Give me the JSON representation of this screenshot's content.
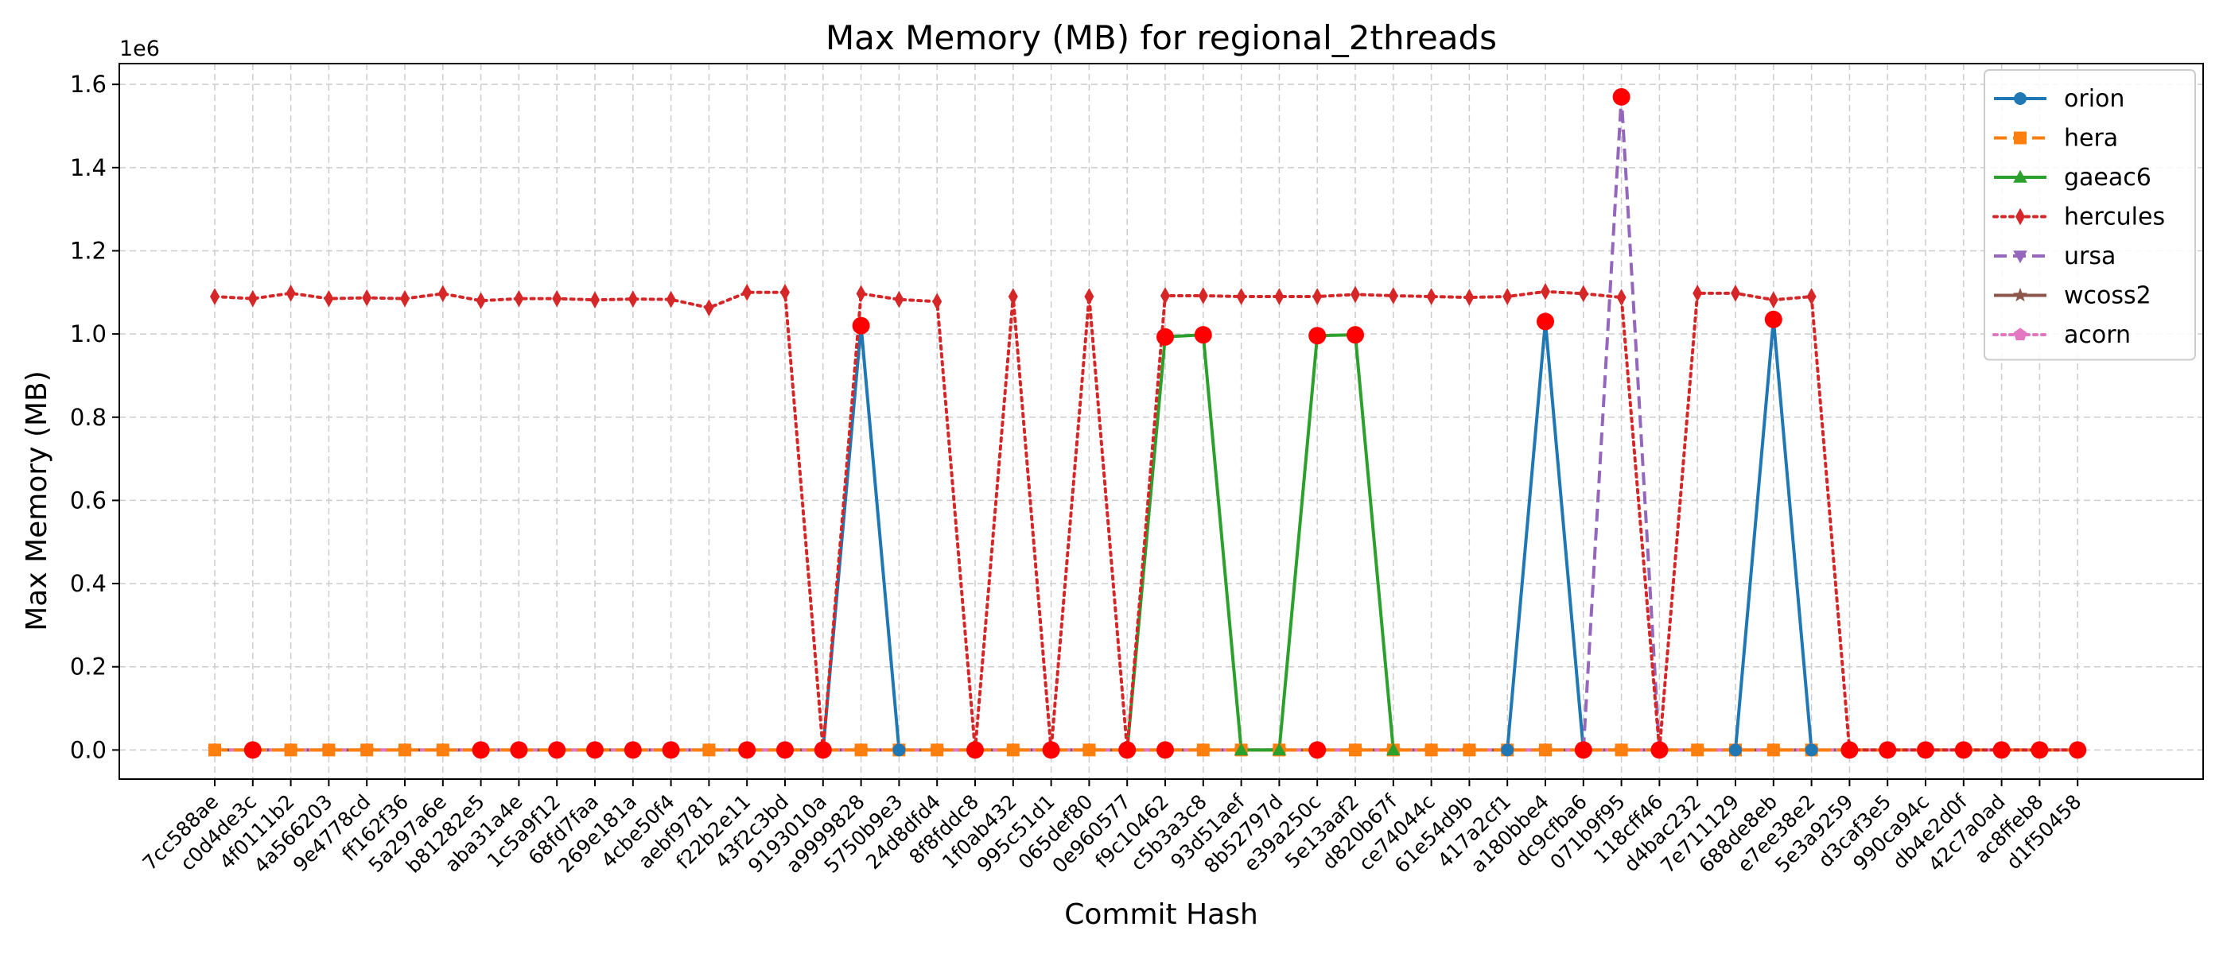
{
  "chart_data": {
    "type": "line",
    "title": "Max Memory (MB) for regional_2threads",
    "xlabel": "Commit Hash",
    "ylabel": "Max Memory (MB)",
    "y_multiplier_label": "1e6",
    "y_multiplier": 1000000,
    "ylim": [
      -70000,
      1650000
    ],
    "yticks": [
      0,
      200000,
      400000,
      600000,
      800000,
      1000000,
      1200000,
      1400000,
      1600000
    ],
    "ytick_labels": [
      "0.0",
      "0.2",
      "0.4",
      "0.6",
      "0.8",
      "1.0",
      "1.2",
      "1.4",
      "1.6"
    ],
    "grid": true,
    "legend_position": "top-right",
    "categories": [
      "7cc588ae",
      "c0d4de3c",
      "4f0111b2",
      "4a566203",
      "9e4778cd",
      "ff162f36",
      "5a297a6e",
      "b81282e5",
      "aba31a4e",
      "1c5a9f12",
      "68fd7faa",
      "269e181a",
      "4cbe50f4",
      "aebf9781",
      "f22b2e11",
      "43f2c3bd",
      "9193010a",
      "a9999828",
      "5750b9e3",
      "24d8dfd4",
      "8f8fddc8",
      "1f0ab432",
      "995c51d1",
      "065def80",
      "0e960577",
      "f9c10462",
      "c5b3a3c8",
      "93d51aef",
      "8b52797d",
      "e39a250c",
      "5e13aaf2",
      "d820b67f",
      "ce74044c",
      "61e54d9b",
      "417a2cf1",
      "a180bbe4",
      "dc9cfba6",
      "071b9f95",
      "118cff46",
      "d4bac232",
      "7e711129",
      "688de8eb",
      "e7ee38e2",
      "5e3a9259",
      "d3caf3e5",
      "990ca94c",
      "db4e2d0f",
      "42c7a0ad",
      "ac8ffeb8",
      "d1f50458"
    ],
    "series": [
      {
        "name": "orion",
        "color": "#1f77b4",
        "dash": "solid",
        "marker": "circle",
        "values": [
          null,
          null,
          null,
          null,
          null,
          null,
          null,
          null,
          null,
          null,
          null,
          null,
          null,
          null,
          null,
          null,
          0,
          1020000,
          0,
          null,
          null,
          null,
          null,
          null,
          null,
          null,
          null,
          null,
          null,
          null,
          null,
          null,
          null,
          null,
          0,
          1030000,
          0,
          null,
          null,
          null,
          0,
          1035000,
          0,
          null,
          null,
          null,
          null,
          null,
          null,
          null
        ]
      },
      {
        "name": "hera",
        "color": "#ff7f0e",
        "dash": "dashed",
        "marker": "square",
        "values": [
          0,
          0,
          0,
          0,
          0,
          0,
          0,
          0,
          0,
          0,
          0,
          0,
          0,
          0,
          0,
          0,
          0,
          0,
          0,
          0,
          0,
          0,
          0,
          0,
          0,
          0,
          0,
          0,
          0,
          0,
          0,
          0,
          0,
          0,
          0,
          0,
          0,
          0,
          0,
          0,
          0,
          0,
          0,
          0,
          0,
          0,
          0,
          0,
          0,
          0
        ]
      },
      {
        "name": "gaeac6",
        "color": "#2ca02c",
        "dash": "solid",
        "marker": "triangle-up",
        "values": [
          null,
          null,
          null,
          null,
          null,
          null,
          null,
          null,
          null,
          null,
          null,
          null,
          null,
          null,
          null,
          null,
          null,
          null,
          null,
          null,
          null,
          null,
          null,
          null,
          0,
          993000,
          998000,
          0,
          0,
          996000,
          998000,
          0,
          null,
          null,
          null,
          null,
          null,
          null,
          null,
          null,
          null,
          null,
          null,
          null,
          null,
          null,
          null,
          null,
          null,
          null
        ]
      },
      {
        "name": "hercules",
        "color": "#d62728",
        "dash": "dotted",
        "marker": "diamond",
        "values": [
          1090000,
          1085000,
          1098000,
          1085000,
          1087000,
          1085000,
          1097000,
          1080000,
          1085000,
          1085000,
          1082000,
          1084000,
          1083000,
          1063000,
          1100000,
          1100000,
          0,
          1097000,
          1083000,
          1078000,
          0,
          1090000,
          0,
          1090000,
          0,
          1092000,
          1092000,
          1090000,
          1090000,
          1090000,
          1095000,
          1092000,
          1090000,
          1088000,
          1090000,
          1102000,
          1097000,
          1088000,
          0,
          1098000,
          1098000,
          1082000,
          1090000,
          0,
          0,
          0,
          0,
          0,
          0,
          0
        ]
      },
      {
        "name": "ursa",
        "color": "#9467bd",
        "dash": "dashed",
        "marker": "triangle-down",
        "values": [
          null,
          null,
          null,
          null,
          null,
          null,
          null,
          null,
          null,
          null,
          null,
          null,
          null,
          null,
          null,
          null,
          null,
          null,
          null,
          null,
          null,
          null,
          null,
          null,
          null,
          null,
          null,
          null,
          null,
          null,
          null,
          null,
          null,
          null,
          null,
          null,
          0,
          1570000,
          0,
          null,
          null,
          null,
          null,
          null,
          null,
          null,
          null,
          null,
          null,
          null
        ]
      },
      {
        "name": "wcoss2",
        "color": "#8c564b",
        "dash": "solid",
        "marker": "star",
        "values": [
          0,
          0,
          0,
          0,
          0,
          0,
          0,
          0,
          0,
          0,
          0,
          0,
          0,
          0,
          0,
          0,
          0,
          0,
          0,
          0,
          0,
          0,
          0,
          0,
          0,
          0,
          0,
          0,
          0,
          0,
          0,
          0,
          0,
          0,
          0,
          0,
          0,
          0,
          0,
          0,
          0,
          0,
          0,
          0,
          0,
          0,
          0,
          0,
          0,
          0
        ]
      },
      {
        "name": "acorn",
        "color": "#e377c2",
        "dash": "dotted",
        "marker": "pentagon",
        "values": [
          0,
          0,
          0,
          0,
          0,
          0,
          0,
          0,
          0,
          0,
          0,
          0,
          0,
          0,
          0,
          0,
          0,
          0,
          0,
          0,
          0,
          0,
          0,
          0,
          0,
          0,
          0,
          0,
          0,
          0,
          0,
          0,
          0,
          0,
          0,
          0,
          0,
          0,
          0,
          0,
          0,
          0,
          0,
          0,
          0,
          0,
          0,
          0,
          0,
          0
        ]
      }
    ],
    "highlight_color": "#ff0000",
    "highlights": [
      {
        "category": "c0d4de3c",
        "value": 0
      },
      {
        "category": "b81282e5",
        "value": 0
      },
      {
        "category": "aba31a4e",
        "value": 0
      },
      {
        "category": "1c5a9f12",
        "value": 0
      },
      {
        "category": "68fd7faa",
        "value": 0
      },
      {
        "category": "269e181a",
        "value": 0
      },
      {
        "category": "4cbe50f4",
        "value": 0
      },
      {
        "category": "f22b2e11",
        "value": 0
      },
      {
        "category": "43f2c3bd",
        "value": 0
      },
      {
        "category": "9193010a",
        "value": 0
      },
      {
        "category": "a9999828",
        "value": 1020000
      },
      {
        "category": "8f8fddc8",
        "value": 0
      },
      {
        "category": "995c51d1",
        "value": 0
      },
      {
        "category": "0e960577",
        "value": 0
      },
      {
        "category": "f9c10462",
        "value": 993000
      },
      {
        "category": "f9c10462",
        "value": 0
      },
      {
        "category": "c5b3a3c8",
        "value": 998000
      },
      {
        "category": "e39a250c",
        "value": 996000
      },
      {
        "category": "e39a250c",
        "value": 0
      },
      {
        "category": "5e13aaf2",
        "value": 998000
      },
      {
        "category": "a180bbe4",
        "value": 1030000
      },
      {
        "category": "dc9cfba6",
        "value": 0
      },
      {
        "category": "071b9f95",
        "value": 1570000
      },
      {
        "category": "118cff46",
        "value": 0
      },
      {
        "category": "688de8eb",
        "value": 1035000
      },
      {
        "category": "5e3a9259",
        "value": 0
      },
      {
        "category": "d3caf3e5",
        "value": 0
      },
      {
        "category": "990ca94c",
        "value": 0
      },
      {
        "category": "db4e2d0f",
        "value": 0
      },
      {
        "category": "42c7a0ad",
        "value": 0
      },
      {
        "category": "ac8ffeb8",
        "value": 0
      },
      {
        "category": "d1f50458",
        "value": 0
      }
    ]
  }
}
